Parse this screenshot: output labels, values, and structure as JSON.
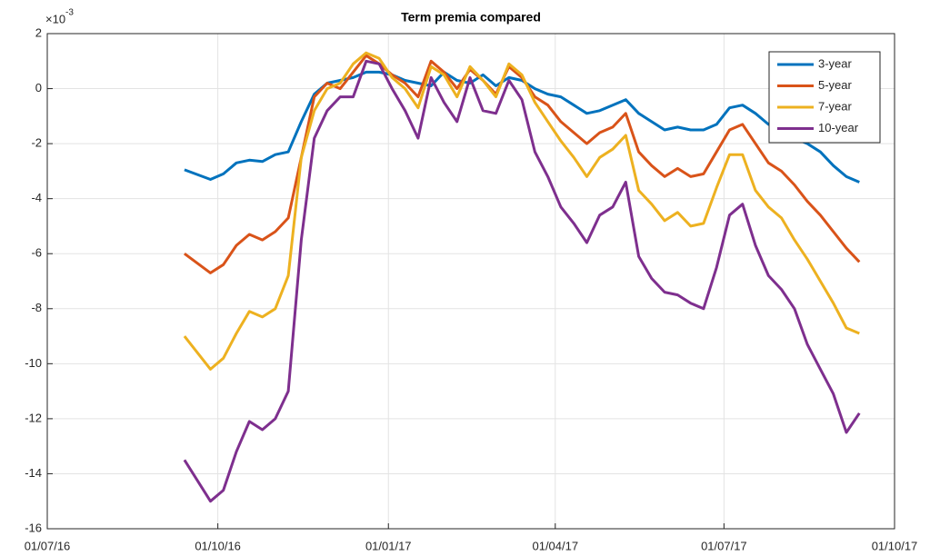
{
  "chart_data": {
    "type": "line",
    "title": "Term premia compared",
    "y_multiplier": {
      "base": "×10",
      "exponent": "-3"
    },
    "x": [
      "2016-09-13",
      "2016-09-27",
      "2016-10-04",
      "2016-10-11",
      "2016-10-18",
      "2016-10-25",
      "2016-11-01",
      "2016-11-08",
      "2016-11-15",
      "2016-11-22",
      "2016-11-29",
      "2016-12-06",
      "2016-12-13",
      "2016-12-20",
      "2016-12-27",
      "2017-01-03",
      "2017-01-10",
      "2017-01-17",
      "2017-01-24",
      "2017-01-31",
      "2017-02-07",
      "2017-02-14",
      "2017-02-21",
      "2017-02-28",
      "2017-03-07",
      "2017-03-14",
      "2017-03-21",
      "2017-03-28",
      "2017-04-04",
      "2017-04-11",
      "2017-04-18",
      "2017-04-25",
      "2017-05-02",
      "2017-05-09",
      "2017-05-16",
      "2017-05-23",
      "2017-05-30",
      "2017-06-06",
      "2017-06-13",
      "2017-06-20",
      "2017-06-27",
      "2017-07-04",
      "2017-07-11",
      "2017-07-18",
      "2017-07-25",
      "2017-08-01",
      "2017-08-08",
      "2017-08-15",
      "2017-08-22",
      "2017-08-29",
      "2017-09-05",
      "2017-09-12"
    ],
    "series": [
      {
        "name": "3-year",
        "color": "#0072bd",
        "values": [
          -2.95,
          -3.3,
          -3.1,
          -2.7,
          -2.6,
          -2.65,
          -2.4,
          -2.3,
          -1.2,
          -0.2,
          0.2,
          0.3,
          0.4,
          0.6,
          0.6,
          0.5,
          0.3,
          0.2,
          0.1,
          0.6,
          0.3,
          0.2,
          0.5,
          0.1,
          0.4,
          0.3,
          0.0,
          -0.2,
          -0.3,
          -0.6,
          -0.9,
          -0.8,
          -0.6,
          -0.4,
          -0.9,
          -1.2,
          -1.5,
          -1.4,
          -1.5,
          -1.5,
          -1.3,
          -0.7,
          -0.6,
          -0.9,
          -1.3,
          -1.5,
          -1.8,
          -2.0,
          -2.3,
          -2.8,
          -3.2,
          -3.4
        ]
      },
      {
        "name": "5-year",
        "color": "#d95319",
        "values": [
          -6.0,
          -6.7,
          -6.4,
          -5.7,
          -5.3,
          -5.5,
          -5.2,
          -4.7,
          -2.5,
          -0.3,
          0.2,
          0.0,
          0.6,
          1.2,
          0.9,
          0.5,
          0.2,
          -0.3,
          1.0,
          0.6,
          0.0,
          0.7,
          0.3,
          -0.2,
          0.8,
          0.4,
          -0.3,
          -0.6,
          -1.2,
          -1.6,
          -2.0,
          -1.6,
          -1.4,
          -0.9,
          -2.3,
          -2.8,
          -3.2,
          -2.9,
          -3.2,
          -3.1,
          -2.3,
          -1.5,
          -1.3,
          -2.0,
          -2.7,
          -3.0,
          -3.5,
          -4.1,
          -4.6,
          -5.2,
          -5.8,
          -6.3
        ]
      },
      {
        "name": "7-year",
        "color": "#edb120",
        "values": [
          -9.0,
          -10.2,
          -9.8,
          -8.9,
          -8.1,
          -8.3,
          -8.0,
          -6.8,
          -2.5,
          -0.8,
          0.0,
          0.2,
          0.9,
          1.3,
          1.1,
          0.4,
          0.0,
          -0.7,
          0.8,
          0.5,
          -0.3,
          0.8,
          0.3,
          -0.3,
          0.9,
          0.5,
          -0.5,
          -1.2,
          -1.9,
          -2.5,
          -3.2,
          -2.5,
          -2.2,
          -1.7,
          -3.7,
          -4.2,
          -4.8,
          -4.5,
          -5.0,
          -4.9,
          -3.6,
          -2.4,
          -2.4,
          -3.7,
          -4.3,
          -4.7,
          -5.5,
          -6.2,
          -7.0,
          -7.8,
          -8.7,
          -8.9
        ]
      },
      {
        "name": "10-year",
        "color": "#7e2f8e",
        "values": [
          -13.5,
          -15.0,
          -14.6,
          -13.2,
          -12.1,
          -12.4,
          -12.0,
          -11.0,
          -5.5,
          -1.8,
          -0.8,
          -0.3,
          -0.3,
          1.0,
          0.9,
          0.0,
          -0.8,
          -1.8,
          0.4,
          -0.5,
          -1.2,
          0.4,
          -0.8,
          -0.9,
          0.3,
          -0.4,
          -2.3,
          -3.2,
          -4.3,
          -4.9,
          -5.6,
          -4.6,
          -4.3,
          -3.4,
          -6.1,
          -6.9,
          -7.4,
          -7.5,
          -7.8,
          -8.0,
          -6.5,
          -4.6,
          -4.2,
          -5.7,
          -6.8,
          -7.3,
          -8.0,
          -9.3,
          -10.2,
          -11.1,
          -12.5,
          -11.8
        ]
      }
    ],
    "xlim": [
      "2016-07-01",
      "2017-10-01"
    ],
    "xticks": [
      {
        "value": "2016-07-01",
        "label": "01/07/16"
      },
      {
        "value": "2016-10-01",
        "label": "01/10/16"
      },
      {
        "value": "2017-01-01",
        "label": "01/01/17"
      },
      {
        "value": "2017-04-01",
        "label": "01/04/17"
      },
      {
        "value": "2017-07-01",
        "label": "01/07/17"
      },
      {
        "value": "2017-10-01",
        "label": "01/10/17"
      }
    ],
    "ylim": [
      -16,
      2
    ],
    "yticks": [
      -16,
      -14,
      -12,
      -10,
      -8,
      -6,
      -4,
      -2,
      0,
      2
    ],
    "grid": true,
    "legend": "northeast"
  }
}
